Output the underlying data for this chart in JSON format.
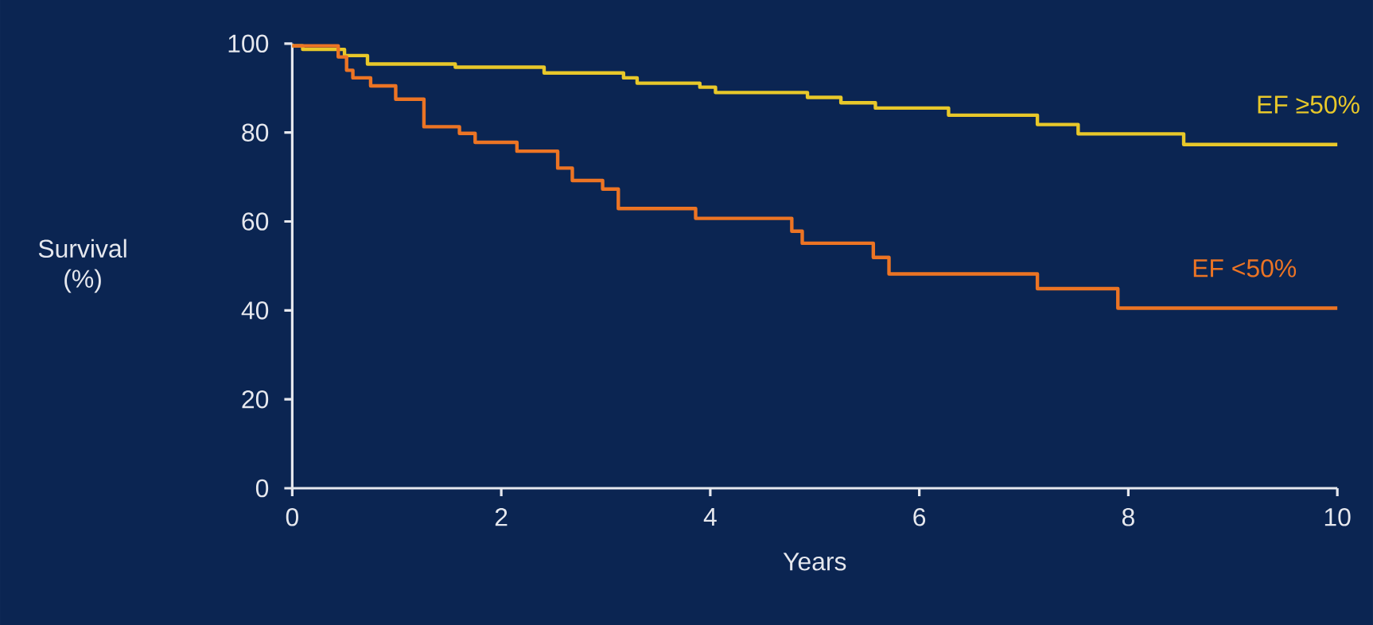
{
  "chart_data": {
    "type": "step",
    "xlabel": "Years",
    "ylabel": "Survival (%)",
    "xlim": [
      0,
      10
    ],
    "ylim": [
      0,
      100
    ],
    "xticks": [
      0,
      2,
      4,
      6,
      8,
      10
    ],
    "yticks": [
      0,
      20,
      40,
      60,
      80,
      100
    ],
    "grid": false,
    "line_style": "solid",
    "series": [
      {
        "name": "EF ≥50%",
        "color": "#e8c82a",
        "x": [
          0,
          0.1,
          0.5,
          0.72,
          1.56,
          2.41,
          3.17,
          3.3,
          3.9,
          4.05,
          4.93,
          5.25,
          5.58,
          6.28,
          7.13,
          7.52,
          8.53,
          10
        ],
        "values": [
          99.5,
          98.7,
          97.3,
          95.4,
          94.7,
          93.4,
          92.3,
          91.1,
          90.2,
          89,
          87.9,
          86.7,
          85.5,
          83.9,
          81.8,
          79.7,
          77.3,
          77.3
        ]
      },
      {
        "name": "EF <50%",
        "color": "#ec7424",
        "x": [
          0,
          0.44,
          0.52,
          0.58,
          0.75,
          0.99,
          1.26,
          1.6,
          1.75,
          2.15,
          2.54,
          2.68,
          2.97,
          3.12,
          3.86,
          4.78,
          4.88,
          5.56,
          5.71,
          7.13,
          7.9,
          10
        ],
        "values": [
          99.5,
          97,
          94,
          92.3,
          90.5,
          87.5,
          81.3,
          79.8,
          77.8,
          75.8,
          72,
          69.2,
          67.3,
          62.9,
          60.7,
          57.8,
          55.1,
          51.9,
          48.2,
          44.9,
          40.5,
          40.5
        ]
      }
    ]
  }
}
